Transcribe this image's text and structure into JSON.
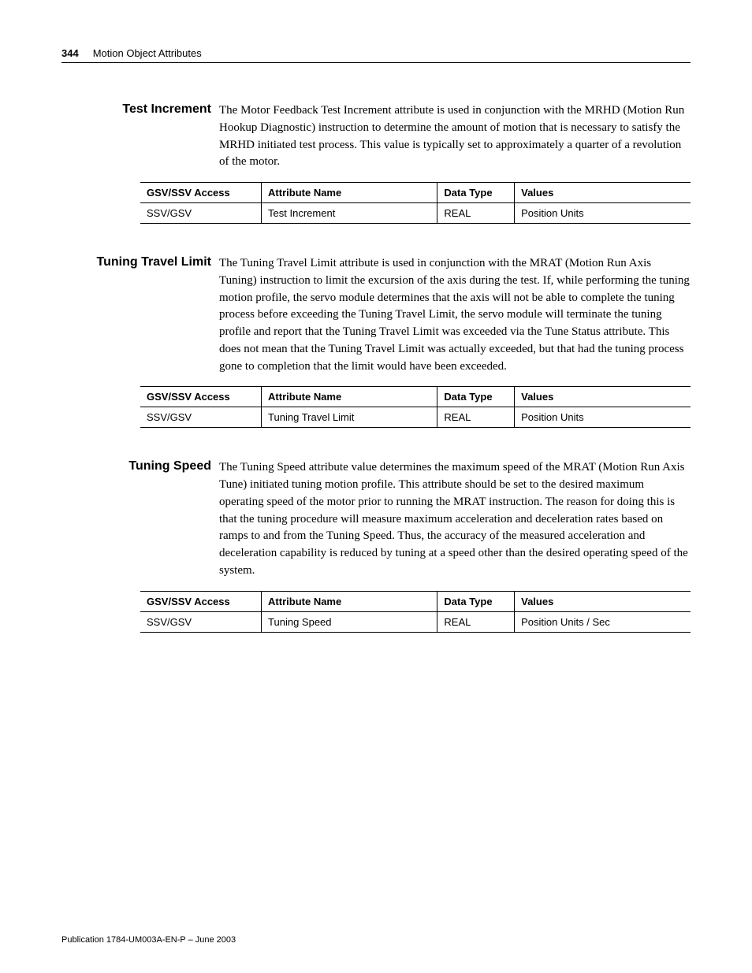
{
  "page_number": "344",
  "chapter_title": "Motion Object Attributes",
  "footer": "Publication 1784-UM003A-EN-P – June 2003",
  "table_headers": {
    "col1": "GSV/SSV Access",
    "col2": "Attribute Name",
    "col3": "Data Type",
    "col4": "Values"
  },
  "sections": [
    {
      "heading": "Test Increment",
      "body": "The Motor Feedback Test Increment attribute is used in conjunction with the MRHD (Motion Run Hookup Diagnostic) instruction to determine the amount of motion that is necessary to satisfy the MRHD initiated test process. This value is typically set to approximately a quarter of a revolution of the motor.",
      "row": {
        "access": "SSV/GSV",
        "attr": "Test Increment",
        "type": "REAL",
        "values": "Position Units"
      }
    },
    {
      "heading": "Tuning Travel Limit",
      "body": "The Tuning Travel Limit attribute is used in conjunction with the MRAT (Motion Run Axis Tuning) instruction to limit the excursion of the axis during the test. If, while performing the tuning motion profile, the servo module determines that the axis will not be able to complete the tuning process before exceeding the Tuning Travel Limit, the servo module will terminate the tuning profile and report that the Tuning Travel Limit was exceeded via the Tune Status attribute. This does not mean that the Tuning Travel Limit was actually exceeded, but that had the tuning process gone to completion that the limit would have been exceeded.",
      "row": {
        "access": "SSV/GSV",
        "attr": "Tuning Travel Limit",
        "type": "REAL",
        "values": "Position Units"
      }
    },
    {
      "heading": "Tuning Speed",
      "body": "The Tuning Speed attribute value determines the maximum speed of the MRAT (Motion Run Axis Tune) initiated tuning motion profile. This attribute should be set to the desired maximum operating speed of the motor prior to running the MRAT instruction. The reason for doing this is that the tuning procedure will measure maximum acceleration and deceleration rates based on ramps to and from the Tuning Speed. Thus, the accuracy of the measured acceleration and deceleration capability is reduced by tuning at a speed other than the desired operating speed of the system.",
      "row": {
        "access": "SSV/GSV",
        "attr": "Tuning Speed",
        "type": "REAL",
        "values": "Position Units / Sec"
      }
    }
  ]
}
